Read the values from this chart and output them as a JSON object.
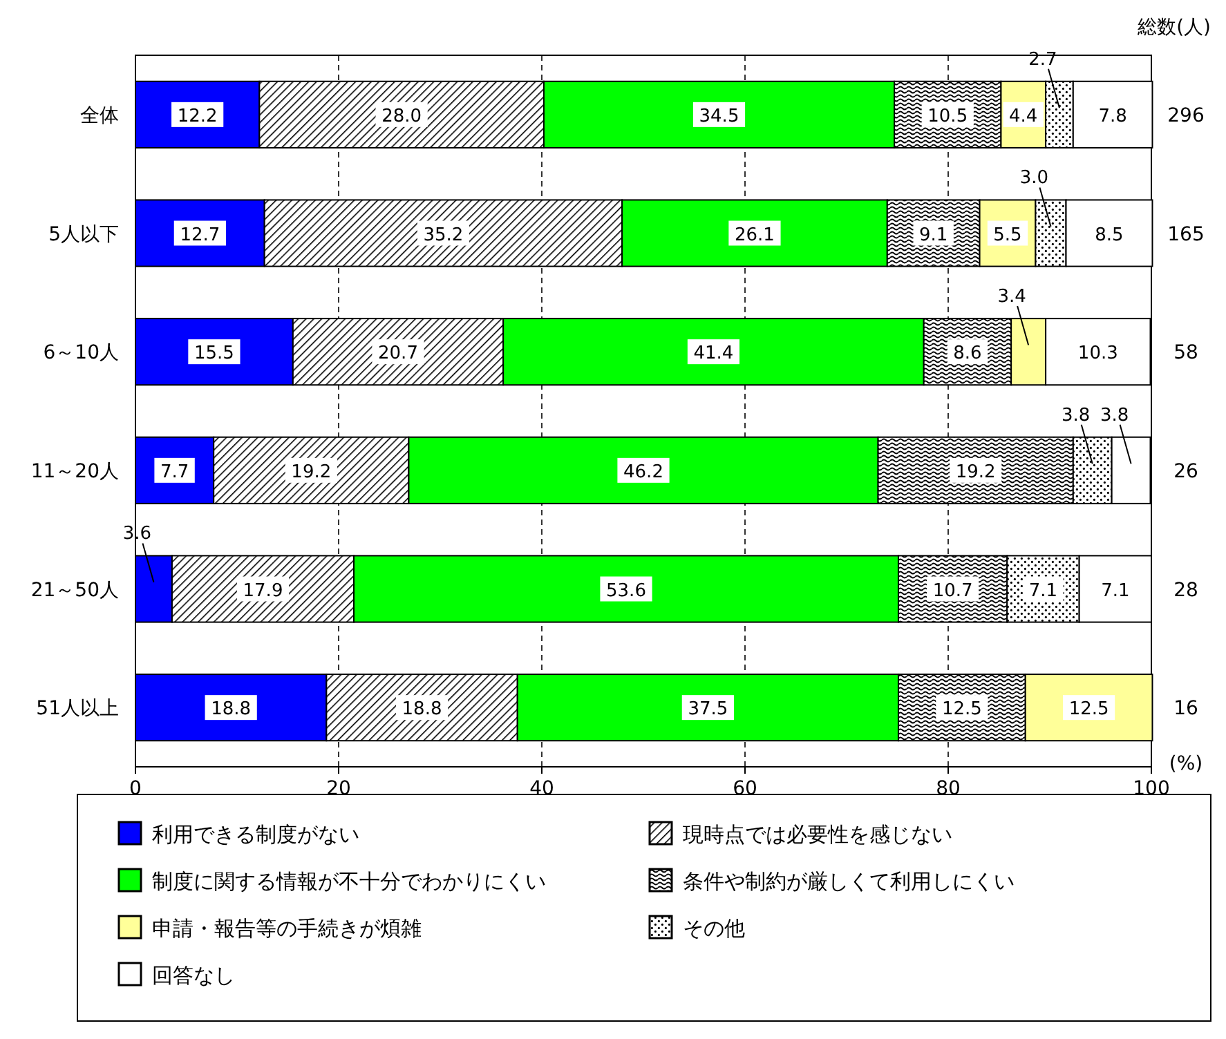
{
  "chart_data": {
    "type": "bar",
    "orientation": "horizontal",
    "stacked": true,
    "xlabel": "(%)",
    "categories": [
      "全体",
      "5人以下",
      "6～10人",
      "11～20人",
      "21～50人",
      "51人以上"
    ],
    "series": [
      {
        "name": "利用できる制度がない",
        "color": "#0000ff",
        "values": [
          12.2,
          12.7,
          15.5,
          7.7,
          3.6,
          18.8
        ],
        "value_labels": [
          "12.2",
          "12.7",
          "15.5",
          "7.7",
          "3.6",
          "18.8"
        ]
      },
      {
        "name": "現時点では必要性を感じない",
        "color": "#000000",
        "values": [
          28.0,
          35.2,
          20.7,
          19.2,
          17.9,
          18.8
        ],
        "value_labels": [
          "28.0",
          "35.2",
          "20.7",
          "19.2",
          "17.9",
          "18.8"
        ]
      },
      {
        "name": "制度に関する情報が不十分でわかりにくい",
        "color": "#00ff00",
        "values": [
          34.5,
          26.1,
          41.4,
          46.2,
          53.6,
          37.5
        ],
        "value_labels": [
          "34.5",
          "26.1",
          "41.4",
          "46.2",
          "53.6",
          "37.5"
        ]
      },
      {
        "name": "条件や制約が厳しくて利用しにくい",
        "color": "#000000",
        "values": [
          10.5,
          9.1,
          8.6,
          19.2,
          10.7,
          12.5
        ],
        "value_labels": [
          "10.5",
          "9.1",
          "8.6",
          "19.2",
          "10.7",
          "12.5"
        ]
      },
      {
        "name": "申請・報告等の手続きが煩雑",
        "color": "#ffff99",
        "values": [
          4.4,
          5.5,
          3.4,
          null,
          null,
          12.5
        ],
        "value_labels": [
          "4.4",
          "5.5",
          "3.4",
          null,
          null,
          "12.5"
        ]
      },
      {
        "name": "その他",
        "color": "#000000",
        "values": [
          2.7,
          3.0,
          null,
          3.8,
          7.1,
          null
        ],
        "value_labels": [
          "2.7",
          "3.0",
          null,
          "3.8",
          "7.1",
          null
        ]
      },
      {
        "name": "回答なし",
        "color": "#ffffff",
        "values": [
          7.8,
          8.5,
          10.3,
          3.8,
          7.1,
          null
        ],
        "value_labels": [
          "7.8",
          "8.5",
          "10.3",
          "3.8",
          "7.1",
          null
        ]
      }
    ],
    "xlim": [
      0,
      100
    ],
    "xticks": [
      0,
      20,
      40,
      60,
      80,
      100
    ],
    "grid": "x",
    "legend": "bottom",
    "annotations": [
      "総数(人)",
      "296",
      "165",
      "58",
      "26",
      "28",
      "16"
    ]
  }
}
